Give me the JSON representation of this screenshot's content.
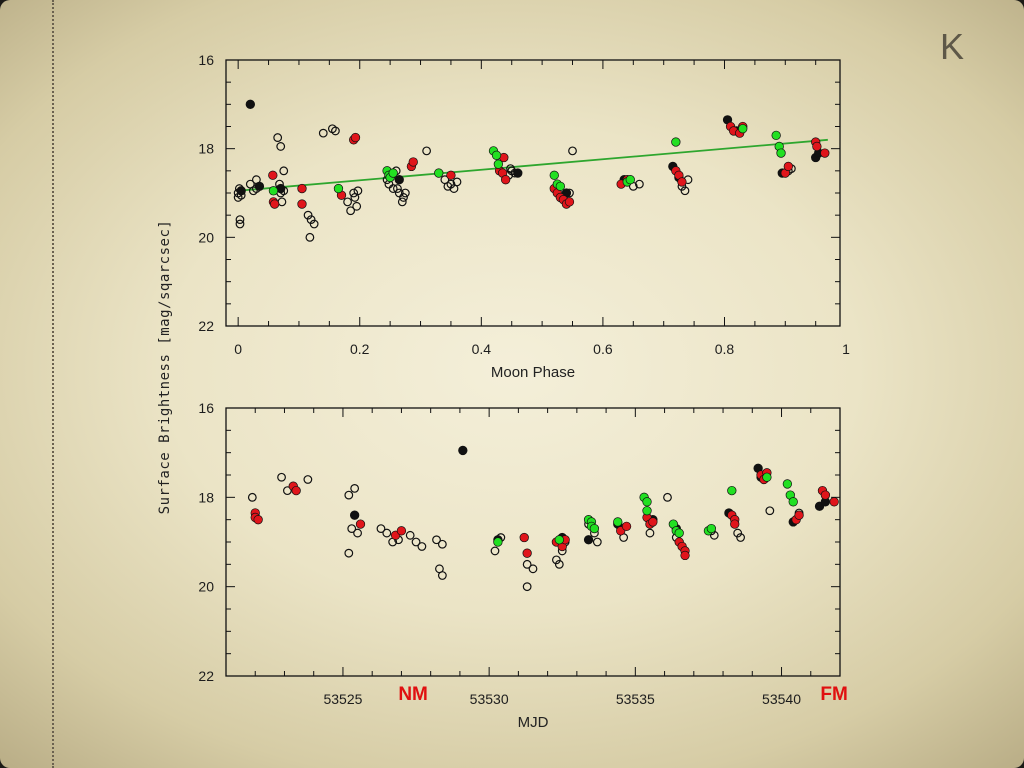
{
  "slide": {
    "corner_letter": "K"
  },
  "colors": {
    "black": "#111111",
    "red": "#e0151b",
    "green": "#22e022",
    "fit": "#2ea62e",
    "marker": "#e01010"
  },
  "shared_ylabel": "Surface Brightness [mag/sqarcsec]",
  "chart_data": [
    {
      "type": "scatter",
      "panel": "top",
      "xlabel": "Moon Phase",
      "ylabel": "Surface Brightness [mag/sqarcsec]",
      "xlim": [
        -0.02,
        0.99
      ],
      "ylim": [
        22,
        16
      ],
      "y_inverted": true,
      "xticks": [
        0,
        0.2,
        0.4,
        0.6,
        0.8,
        1
      ],
      "xtick_labels": [
        "0",
        "0.2",
        "0.4",
        "0.6",
        "0.8",
        "1"
      ],
      "yticks": [
        16,
        18,
        20,
        22
      ],
      "ytick_labels": [
        "16",
        "18",
        "20",
        "22"
      ],
      "fit_line": {
        "x": [
          0.0,
          0.97
        ],
        "y": [
          18.95,
          17.8
        ]
      },
      "series": [
        {
          "marker": "open-circle",
          "color": "black",
          "points": [
            [
              0.0,
              19.0
            ],
            [
              0.0,
              19.1
            ],
            [
              0.002,
              18.9
            ],
            [
              0.003,
              19.6
            ],
            [
              0.003,
              19.7
            ],
            [
              0.005,
              19.05
            ],
            [
              0.02,
              18.8
            ],
            [
              0.025,
              18.95
            ],
            [
              0.03,
              18.7
            ],
            [
              0.03,
              18.9
            ],
            [
              0.065,
              17.75
            ],
            [
              0.07,
              17.95
            ],
            [
              0.068,
              18.8
            ],
            [
              0.07,
              19.0
            ],
            [
              0.072,
              19.2
            ],
            [
              0.075,
              18.5
            ],
            [
              0.075,
              18.95
            ],
            [
              0.115,
              19.5
            ],
            [
              0.118,
              20.0
            ],
            [
              0.12,
              19.6
            ],
            [
              0.125,
              19.7
            ],
            [
              0.14,
              17.65
            ],
            [
              0.155,
              17.55
            ],
            [
              0.16,
              17.6
            ],
            [
              0.18,
              19.2
            ],
            [
              0.185,
              19.4
            ],
            [
              0.19,
              19.0
            ],
            [
              0.192,
              19.1
            ],
            [
              0.195,
              19.3
            ],
            [
              0.197,
              18.95
            ],
            [
              0.245,
              18.7
            ],
            [
              0.248,
              18.8
            ],
            [
              0.25,
              18.6
            ],
            [
              0.255,
              18.9
            ],
            [
              0.26,
              18.5
            ],
            [
              0.262,
              18.9
            ],
            [
              0.265,
              19.0
            ],
            [
              0.27,
              19.2
            ],
            [
              0.272,
              19.1
            ],
            [
              0.275,
              19.0
            ],
            [
              0.31,
              18.05
            ],
            [
              0.34,
              18.7
            ],
            [
              0.345,
              18.85
            ],
            [
              0.35,
              18.8
            ],
            [
              0.355,
              18.9
            ],
            [
              0.36,
              18.75
            ],
            [
              0.445,
              18.6
            ],
            [
              0.448,
              18.45
            ],
            [
              0.45,
              18.5
            ],
            [
              0.455,
              18.55
            ],
            [
              0.55,
              18.05
            ],
            [
              0.545,
              19.0
            ],
            [
              0.65,
              18.85
            ],
            [
              0.66,
              18.8
            ],
            [
              0.73,
              18.85
            ],
            [
              0.735,
              18.95
            ],
            [
              0.74,
              18.7
            ],
            [
              0.905,
              18.5
            ],
            [
              0.91,
              18.45
            ]
          ]
        },
        {
          "marker": "filled-circle",
          "color": "black",
          "points": [
            [
              0.02,
              17.0
            ],
            [
              0.005,
              18.95
            ],
            [
              0.035,
              18.85
            ],
            [
              0.07,
              18.9
            ],
            [
              0.265,
              18.7
            ],
            [
              0.46,
              18.55
            ],
            [
              0.54,
              19.0
            ],
            [
              0.635,
              18.7
            ],
            [
              0.715,
              18.4
            ],
            [
              0.725,
              18.65
            ],
            [
              0.805,
              17.35
            ],
            [
              0.82,
              17.6
            ],
            [
              0.895,
              18.55
            ],
            [
              0.95,
              18.2
            ],
            [
              0.955,
              18.1
            ]
          ]
        },
        {
          "marker": "filled-circle",
          "color": "red",
          "points": [
            [
              0.057,
              18.6
            ],
            [
              0.058,
              19.2
            ],
            [
              0.06,
              19.25
            ],
            [
              0.105,
              18.9
            ],
            [
              0.105,
              19.25
            ],
            [
              0.17,
              19.05
            ],
            [
              0.19,
              17.8
            ],
            [
              0.193,
              17.75
            ],
            [
              0.285,
              18.4
            ],
            [
              0.288,
              18.3
            ],
            [
              0.35,
              18.6
            ],
            [
              0.43,
              18.5
            ],
            [
              0.435,
              18.55
            ],
            [
              0.437,
              18.2
            ],
            [
              0.44,
              18.7
            ],
            [
              0.52,
              18.9
            ],
            [
              0.525,
              19.0
            ],
            [
              0.53,
              19.1
            ],
            [
              0.535,
              19.15
            ],
            [
              0.54,
              19.25
            ],
            [
              0.545,
              19.2
            ],
            [
              0.63,
              18.8
            ],
            [
              0.64,
              18.7
            ],
            [
              0.72,
              18.5
            ],
            [
              0.725,
              18.6
            ],
            [
              0.73,
              18.75
            ],
            [
              0.81,
              17.5
            ],
            [
              0.815,
              17.6
            ],
            [
              0.825,
              17.65
            ],
            [
              0.83,
              17.5
            ],
            [
              0.9,
              18.55
            ],
            [
              0.905,
              18.4
            ],
            [
              0.95,
              17.85
            ],
            [
              0.952,
              17.95
            ],
            [
              0.965,
              18.1
            ]
          ]
        },
        {
          "marker": "filled-circle",
          "color": "green",
          "points": [
            [
              0.058,
              18.95
            ],
            [
              0.165,
              18.9
            ],
            [
              0.245,
              18.5
            ],
            [
              0.248,
              18.6
            ],
            [
              0.25,
              18.65
            ],
            [
              0.255,
              18.55
            ],
            [
              0.33,
              18.55
            ],
            [
              0.42,
              18.05
            ],
            [
              0.425,
              18.15
            ],
            [
              0.428,
              18.35
            ],
            [
              0.52,
              18.6
            ],
            [
              0.525,
              18.8
            ],
            [
              0.53,
              18.85
            ],
            [
              0.64,
              18.75
            ],
            [
              0.645,
              18.7
            ],
            [
              0.72,
              17.85
            ],
            [
              0.83,
              17.55
            ],
            [
              0.885,
              17.7
            ],
            [
              0.89,
              17.95
            ],
            [
              0.893,
              18.1
            ]
          ]
        }
      ]
    },
    {
      "type": "scatter",
      "panel": "bottom",
      "xlabel": "MJD",
      "ylabel": "Surface Brightness [mag/sqarcsec]",
      "xlim": [
        53521.0,
        53542.0
      ],
      "ylim": [
        22,
        16
      ],
      "y_inverted": true,
      "xticks": [
        53525,
        53530,
        53535,
        53540
      ],
      "xtick_labels": [
        "53525",
        "53530",
        "53535",
        "53540"
      ],
      "yticks": [
        16,
        18,
        20,
        22
      ],
      "ytick_labels": [
        "16",
        "18",
        "20",
        "22"
      ],
      "annotations": [
        {
          "text": "NM",
          "x": 53527.4
        },
        {
          "text": "FM",
          "x": 53541.8
        }
      ],
      "series": [
        {
          "marker": "open-circle",
          "color": "black",
          "points": [
            [
              53521.9,
              18.0
            ],
            [
              53522.9,
              17.55
            ],
            [
              53523.1,
              17.85
            ],
            [
              53523.8,
              17.6
            ],
            [
              53525.2,
              19.25
            ],
            [
              53525.2,
              17.95
            ],
            [
              53525.4,
              17.8
            ],
            [
              53525.3,
              18.7
            ],
            [
              53525.5,
              18.8
            ],
            [
              53526.3,
              18.7
            ],
            [
              53526.5,
              18.8
            ],
            [
              53526.7,
              19.0
            ],
            [
              53526.9,
              18.95
            ],
            [
              53527.3,
              18.85
            ],
            [
              53527.5,
              19.0
            ],
            [
              53527.7,
              19.1
            ],
            [
              53528.2,
              18.95
            ],
            [
              53528.4,
              19.05
            ],
            [
              53528.3,
              19.6
            ],
            [
              53528.4,
              19.75
            ],
            [
              53530.2,
              19.2
            ],
            [
              53530.4,
              18.9
            ],
            [
              53531.3,
              19.5
            ],
            [
              53531.3,
              20.0
            ],
            [
              53531.5,
              19.6
            ],
            [
              53532.3,
              19.4
            ],
            [
              53532.4,
              19.5
            ],
            [
              53532.5,
              19.2
            ],
            [
              53532.6,
              19.0
            ],
            [
              53533.4,
              18.6
            ],
            [
              53533.6,
              18.8
            ],
            [
              53533.7,
              19.0
            ],
            [
              53534.5,
              18.7
            ],
            [
              53534.6,
              18.9
            ],
            [
              53535.5,
              18.8
            ],
            [
              53536.1,
              18.0
            ],
            [
              53536.4,
              18.9
            ],
            [
              53536.5,
              19.0
            ],
            [
              53537.6,
              18.75
            ],
            [
              53537.7,
              18.85
            ],
            [
              53538.5,
              18.8
            ],
            [
              53538.6,
              18.9
            ],
            [
              53539.6,
              18.3
            ],
            [
              53540.6,
              18.35
            ]
          ]
        },
        {
          "marker": "filled-circle",
          "color": "black",
          "points": [
            [
              53529.1,
              16.95
            ],
            [
              53525.4,
              18.4
            ],
            [
              53530.3,
              18.95
            ],
            [
              53532.5,
              18.9
            ],
            [
              53533.4,
              18.95
            ],
            [
              53534.4,
              18.6
            ],
            [
              53535.6,
              18.5
            ],
            [
              53536.4,
              18.7
            ],
            [
              53538.2,
              18.35
            ],
            [
              53539.2,
              17.35
            ],
            [
              53539.3,
              17.55
            ],
            [
              53540.4,
              18.55
            ],
            [
              53541.3,
              18.2
            ],
            [
              53541.5,
              18.1
            ]
          ]
        },
        {
          "marker": "filled-circle",
          "color": "red",
          "points": [
            [
              53522.0,
              18.35
            ],
            [
              53522.0,
              18.45
            ],
            [
              53522.1,
              18.5
            ],
            [
              53523.3,
              17.75
            ],
            [
              53523.4,
              17.85
            ],
            [
              53525.6,
              18.6
            ],
            [
              53526.8,
              18.85
            ],
            [
              53527.0,
              18.75
            ],
            [
              53531.2,
              18.9
            ],
            [
              53531.3,
              19.25
            ],
            [
              53532.3,
              19.0
            ],
            [
              53532.5,
              19.1
            ],
            [
              53532.6,
              18.95
            ],
            [
              53534.5,
              18.75
            ],
            [
              53534.7,
              18.65
            ],
            [
              53535.4,
              18.45
            ],
            [
              53535.5,
              18.6
            ],
            [
              53535.6,
              18.55
            ],
            [
              53536.5,
              19.0
            ],
            [
              53536.6,
              19.1
            ],
            [
              53536.7,
              19.2
            ],
            [
              53536.7,
              19.3
            ],
            [
              53538.3,
              18.4
            ],
            [
              53538.4,
              18.5
            ],
            [
              53538.4,
              18.6
            ],
            [
              53539.3,
              17.5
            ],
            [
              53539.4,
              17.6
            ],
            [
              53539.5,
              17.45
            ],
            [
              53540.5,
              18.5
            ],
            [
              53540.6,
              18.4
            ],
            [
              53541.4,
              17.85
            ],
            [
              53541.5,
              17.95
            ],
            [
              53541.8,
              18.1
            ]
          ]
        },
        {
          "marker": "filled-circle",
          "color": "green",
          "points": [
            [
              53530.3,
              19.0
            ],
            [
              53532.4,
              18.95
            ],
            [
              53533.4,
              18.5
            ],
            [
              53533.5,
              18.55
            ],
            [
              53533.5,
              18.65
            ],
            [
              53533.6,
              18.7
            ],
            [
              53534.4,
              18.55
            ],
            [
              53535.3,
              18.0
            ],
            [
              53535.4,
              18.1
            ],
            [
              53535.4,
              18.3
            ],
            [
              53536.3,
              18.6
            ],
            [
              53536.4,
              18.75
            ],
            [
              53536.5,
              18.8
            ],
            [
              53537.5,
              18.75
            ],
            [
              53537.6,
              18.7
            ],
            [
              53538.3,
              17.85
            ],
            [
              53539.5,
              17.55
            ],
            [
              53540.2,
              17.7
            ],
            [
              53540.3,
              17.95
            ],
            [
              53540.4,
              18.1
            ]
          ]
        }
      ]
    }
  ]
}
